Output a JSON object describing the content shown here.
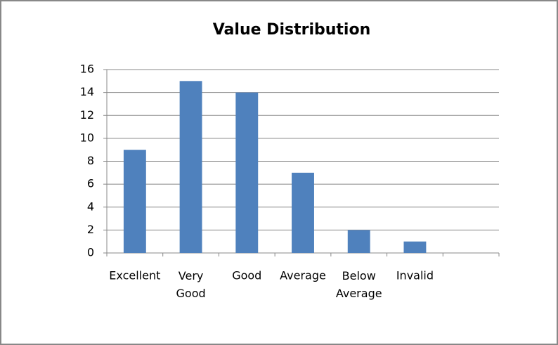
{
  "chart_data": {
    "type": "bar",
    "title": "Value Distribution",
    "categories": [
      "Excellent",
      "Very Good",
      "Good",
      "Average",
      "Below Average",
      "Invalid",
      null
    ],
    "values": [
      9,
      15,
      14,
      7,
      2,
      1,
      null
    ],
    "color": "#4f81bd",
    "ylim": [
      0,
      16
    ],
    "yticks": [
      0,
      2,
      4,
      6,
      8,
      10,
      12,
      14,
      16
    ],
    "grid": true
  }
}
